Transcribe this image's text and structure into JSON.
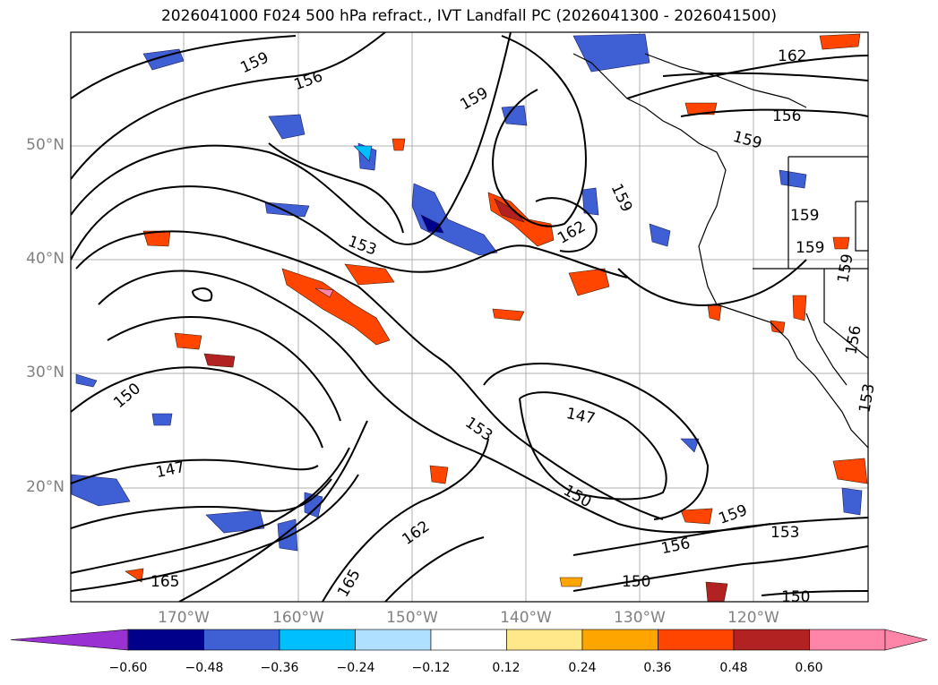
{
  "title": "2026041000 F024 500 hPa refract., IVT Landfall PC (2026041300 - 2026041500)",
  "map": {
    "lat_labels": [
      "50°N",
      "40°N",
      "30°N",
      "20°N"
    ],
    "lon_labels": [
      "170°W",
      "160°W",
      "150°W",
      "140°W",
      "130°W",
      "120°W"
    ],
    "contour_labels": [
      "159",
      "156",
      "159",
      "162",
      "156",
      "159",
      "159",
      "162",
      "159",
      "159",
      "159",
      "153",
      "150",
      "147",
      "153",
      "147",
      "150",
      "162",
      "165",
      "165",
      "156",
      "159",
      "153",
      "150",
      "150",
      "156",
      "153"
    ],
    "colors": {
      "land_outline": "#000000",
      "grid": "#b0b0b0",
      "contour": "#000000"
    }
  },
  "colorbar": {
    "ticks": [
      "−0.60",
      "−0.48",
      "−0.36",
      "−0.24",
      "−0.12",
      "0.12",
      "0.24",
      "0.36",
      "0.48",
      "0.60"
    ],
    "colors": [
      "#9a31d2",
      "#00008b",
      "#3f5fd4",
      "#00bfff",
      "#b0e0ff",
      "#ffffff",
      "#ffe88a",
      "#ffa500",
      "#ff4500",
      "#b22222",
      "#ff85a8",
      "#ff85a8"
    ]
  }
}
